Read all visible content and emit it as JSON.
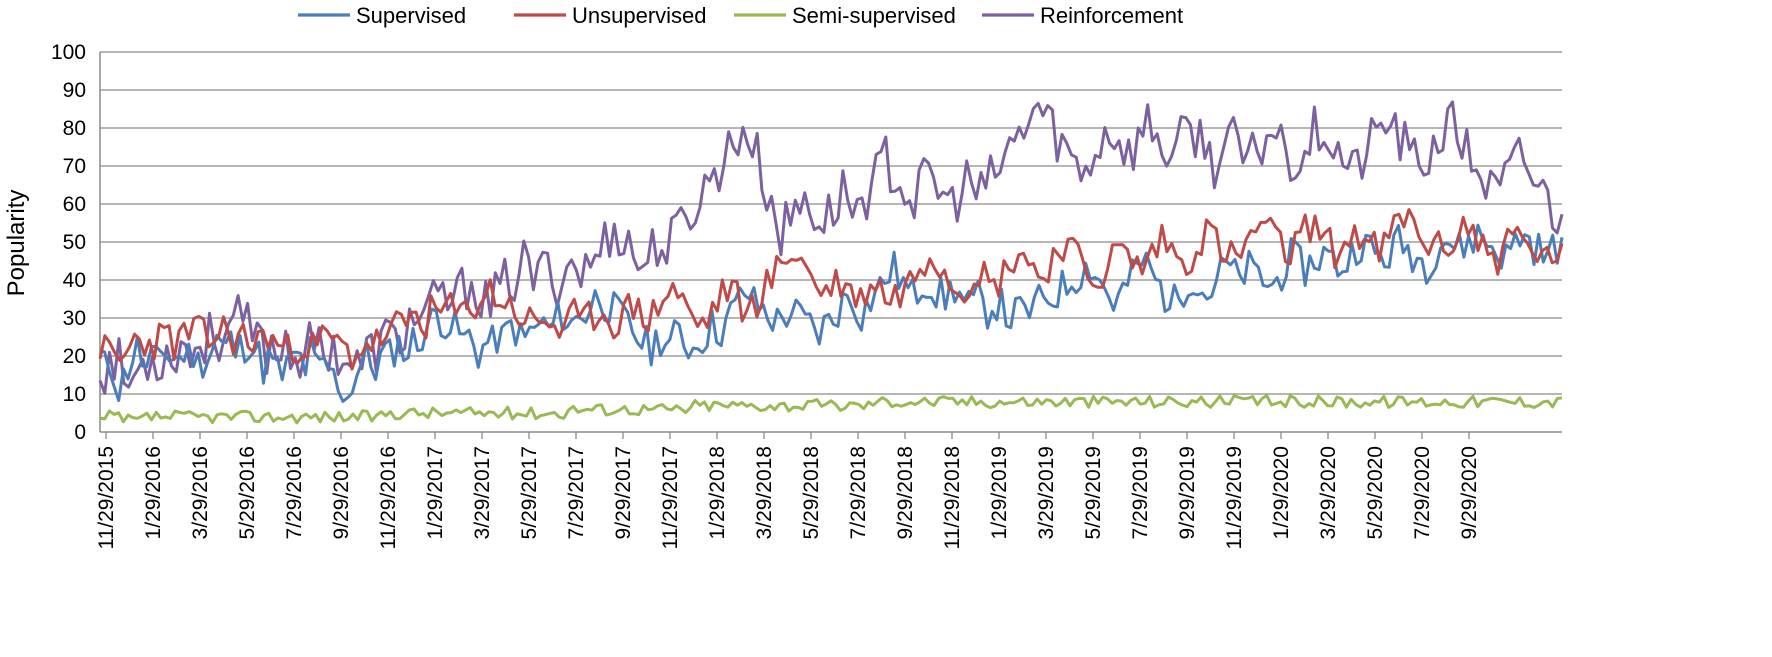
{
  "chart_data": {
    "type": "line",
    "title": "",
    "xlabel": "",
    "ylabel": "Popularity",
    "ylim": [
      0,
      100
    ],
    "yticks": [
      0,
      10,
      20,
      30,
      40,
      50,
      60,
      70,
      80,
      90,
      100
    ],
    "grid": "horizontal",
    "legend": "top",
    "x_start": "11/29/2015",
    "x_end": "12/27/2020",
    "x_step": "weekly",
    "x_tick_labels": [
      "11/29/2015",
      "1/29/2016",
      "3/29/2016",
      "5/29/2016",
      "7/29/2016",
      "9/29/2016",
      "11/29/2016",
      "1/29/2017",
      "3/29/2017",
      "5/29/2017",
      "7/29/2017",
      "9/29/2017",
      "11/29/2017",
      "1/29/2018",
      "3/29/2018",
      "5/29/2018",
      "7/29/2018",
      "9/29/2018",
      "11/29/2018",
      "1/29/2019",
      "3/29/2019",
      "5/29/2019",
      "7/29/2019",
      "9/29/2019",
      "11/29/2019",
      "1/29/2020",
      "3/29/2020",
      "5/29/2020",
      "7/29/2020",
      "9/29/2020"
    ],
    "series": [
      {
        "name": "Supervised",
        "color": "#4a7ebb",
        "values": [
          20,
          17,
          18,
          16,
          11,
          14,
          17,
          20,
          22,
          19,
          16,
          19,
          18,
          21,
          22,
          19,
          20,
          19,
          21,
          20,
          21,
          18,
          19,
          20,
          22,
          25,
          23,
          22,
          24,
          21,
          22,
          23,
          24,
          22,
          20,
          17,
          19,
          18,
          16,
          15,
          17,
          18,
          20,
          19,
          17,
          21,
          18,
          16,
          18,
          17,
          14,
          13,
          11,
          9,
          13,
          16,
          18,
          20,
          18,
          17,
          19,
          21,
          20,
          22,
          23,
          22,
          21,
          24,
          23,
          26,
          28,
          29,
          31,
          30,
          29,
          28,
          27,
          26,
          24,
          25,
          23,
          21,
          22,
          24,
          23,
          25,
          24,
          26,
          28,
          27,
          25,
          24,
          27,
          26,
          29,
          28,
          27,
          28,
          30,
          31,
          29,
          28,
          30,
          32,
          31,
          33,
          35,
          36,
          34,
          33,
          32,
          31,
          30,
          28,
          27,
          25,
          24,
          23,
          22,
          24,
          25,
          24,
          23,
          25,
          26,
          24,
          23,
          22,
          24,
          25,
          26,
          28,
          27,
          27,
          29,
          31,
          33,
          35,
          37,
          36,
          34,
          33,
          32,
          31,
          30,
          29,
          30,
          31,
          32,
          31,
          30,
          29,
          28,
          27,
          26,
          28,
          29,
          30,
          32,
          34,
          36,
          35,
          33,
          31,
          33,
          35,
          37,
          38,
          40,
          42,
          43,
          41,
          39,
          37,
          36,
          37,
          39,
          40,
          38,
          37,
          36,
          35,
          37,
          38,
          36,
          34,
          33,
          34,
          35,
          33,
          32,
          33,
          34,
          33,
          31,
          30,
          31,
          32,
          31,
          32,
          33,
          34,
          35,
          36,
          35,
          37,
          38,
          39,
          40,
          41,
          42,
          43,
          44,
          42,
          40,
          38,
          36,
          34,
          35,
          37,
          39,
          41,
          43,
          45,
          44,
          42,
          40,
          38,
          36,
          35,
          34,
          36,
          38,
          40,
          41,
          39,
          37,
          36,
          38,
          40,
          42,
          44,
          43,
          41,
          40,
          42,
          43,
          42,
          41,
          40,
          39,
          38,
          40,
          42,
          44,
          46,
          45,
          44,
          43,
          44,
          45,
          46,
          47,
          46,
          45,
          44,
          43,
          45,
          47,
          49,
          50,
          49,
          48,
          47,
          46,
          45,
          47,
          49,
          50,
          49,
          48,
          47,
          46,
          45,
          44,
          46,
          48,
          50,
          51,
          50,
          49,
          48,
          49,
          50,
          51,
          52,
          51,
          50,
          49,
          48,
          47,
          46,
          48,
          50,
          52,
          51,
          50,
          49,
          48,
          47,
          46,
          48,
          49,
          50
        ],
        "seed": 11
      },
      {
        "name": "Unsupervised",
        "color": "#be4b48",
        "values": [
          23,
          21,
          20,
          19,
          18,
          20,
          22,
          24,
          25,
          24,
          23,
          24,
          25,
          24,
          26,
          23,
          24,
          25,
          26,
          27,
          26,
          25,
          24,
          25,
          26,
          27,
          26,
          25,
          24,
          25,
          24,
          23,
          24,
          25,
          26,
          24,
          23,
          22,
          21,
          22,
          23,
          24,
          23,
          22,
          23,
          24,
          25,
          24,
          23,
          22,
          21,
          20,
          21,
          22,
          23,
          24,
          23,
          25,
          24,
          26,
          28,
          27,
          29,
          30,
          31,
          30,
          29,
          31,
          32,
          31,
          33,
          32,
          31,
          30,
          32,
          33,
          34,
          35,
          36,
          37,
          36,
          35,
          34,
          33,
          32,
          31,
          30,
          29,
          28,
          29,
          30,
          29,
          28,
          27,
          28,
          29,
          30,
          29,
          28,
          30,
          31,
          32,
          31,
          30,
          29,
          30,
          31,
          32,
          33,
          32,
          31,
          30,
          31,
          33,
          35,
          37,
          38,
          36,
          34,
          32,
          30,
          29,
          28,
          30,
          32,
          34,
          36,
          38,
          37,
          35,
          33,
          31,
          33,
          35,
          37,
          39,
          40,
          42,
          44,
          46,
          48,
          47,
          45,
          43,
          41,
          39,
          38,
          37,
          38,
          39,
          40,
          38,
          37,
          36,
          35,
          37,
          39,
          40,
          38,
          36,
          35,
          36,
          37,
          38,
          40,
          42,
          44,
          46,
          48,
          47,
          45,
          43,
          41,
          39,
          38,
          39,
          40,
          42,
          43,
          41,
          39,
          38,
          40,
          42,
          44,
          46,
          48,
          47,
          45,
          43,
          41,
          42,
          44,
          46,
          48,
          50,
          49,
          47,
          45,
          43,
          42,
          41,
          40,
          42,
          44,
          46,
          48,
          47,
          46,
          45,
          44,
          43,
          45,
          47,
          49,
          51,
          50,
          48,
          46,
          44,
          45,
          47,
          49,
          51,
          53,
          52,
          50,
          48,
          47,
          46,
          45,
          47,
          49,
          51,
          53,
          55,
          54,
          52,
          50,
          49,
          48,
          47,
          49,
          51,
          53,
          55,
          54,
          52,
          50,
          49,
          48,
          47,
          49,
          51,
          53,
          52,
          50,
          49,
          48,
          47,
          49,
          51,
          53,
          55,
          57,
          56,
          54,
          52,
          51,
          50,
          49,
          48,
          47,
          49,
          51,
          53,
          55,
          54,
          52,
          50,
          49,
          48,
          47,
          46,
          48,
          50,
          52,
          51,
          50,
          49,
          48,
          47,
          46,
          45,
          47,
          48,
          49
        ],
        "seed": 23
      },
      {
        "name": "Semi-supervised",
        "color": "#98b954",
        "values": [
          3,
          3,
          4,
          4,
          4,
          3,
          3,
          3,
          3,
          3,
          4,
          4,
          4,
          4,
          4,
          4,
          4,
          4,
          4,
          4,
          4,
          4,
          4,
          4,
          4,
          4,
          4,
          4,
          4,
          4,
          4,
          4,
          4,
          4,
          4,
          4,
          4,
          4,
          4,
          4,
          4,
          4,
          4,
          4,
          4,
          4,
          4,
          4,
          4,
          4,
          4,
          4,
          4,
          4,
          4,
          4,
          4,
          4,
          4,
          4,
          4,
          5,
          5,
          5,
          5,
          5,
          5,
          5,
          5,
          5,
          5,
          5,
          5,
          5,
          5,
          5,
          5,
          5,
          5,
          5,
          5,
          5,
          5,
          5,
          5,
          5,
          5,
          5,
          5,
          5,
          5,
          5,
          5,
          5,
          5,
          5,
          5,
          5,
          5,
          5,
          6,
          6,
          6,
          6,
          6,
          6,
          6,
          6,
          6,
          6,
          6,
          6,
          6,
          6,
          6,
          6,
          6,
          6,
          6,
          6,
          6,
          6,
          6,
          6,
          6,
          6,
          6,
          7,
          7,
          7,
          7,
          7,
          7,
          7,
          7,
          7,
          7,
          7,
          7,
          7,
          7,
          7,
          7,
          7,
          7,
          7,
          7,
          7,
          7,
          7,
          7,
          7,
          7,
          7,
          7,
          7,
          7,
          7,
          7,
          7,
          7,
          7,
          7,
          7,
          7,
          8,
          8,
          8,
          8,
          8,
          8,
          8,
          8,
          8,
          8,
          8,
          8,
          8,
          8,
          8,
          8,
          8,
          8,
          8,
          8,
          8,
          8,
          8,
          8,
          8,
          8,
          8,
          8,
          8,
          8,
          8,
          8,
          8,
          8,
          8,
          8,
          8,
          8,
          8,
          8,
          8,
          8,
          8,
          8,
          8,
          8,
          8,
          8,
          8,
          8,
          8,
          8,
          8,
          8,
          8,
          8,
          8,
          8,
          8,
          8,
          8,
          8,
          8,
          8,
          8,
          8,
          8,
          8,
          8,
          8,
          8,
          8,
          8,
          8,
          8,
          8,
          8,
          8,
          8,
          8,
          8,
          8,
          8,
          8,
          8,
          8,
          8,
          8,
          8,
          8,
          8,
          8,
          8,
          8,
          8,
          8,
          8,
          8,
          8,
          8,
          8,
          8,
          8,
          8,
          8,
          8,
          8,
          8,
          8,
          8,
          8,
          8,
          8,
          8,
          8,
          8,
          8,
          8,
          8,
          8,
          8,
          8,
          8,
          8,
          8,
          8,
          8,
          8,
          8,
          8,
          8,
          8,
          8,
          8,
          8,
          8,
          8,
          8,
          8,
          8,
          8,
          8,
          8,
          8,
          8,
          8,
          8,
          8
        ],
        "seed": 37
      },
      {
        "name": "Reinforcement",
        "color": "#7d60a0",
        "values": [
          16,
          17,
          18,
          19,
          18,
          14,
          13,
          14,
          16,
          18,
          19,
          20,
          20,
          19,
          20,
          21,
          22,
          23,
          22,
          21,
          22,
          23,
          24,
          25,
          26,
          25,
          27,
          28,
          30,
          29,
          28,
          27,
          25,
          24,
          23,
          22,
          22,
          21,
          23,
          24,
          22,
          21,
          20,
          21,
          22,
          23,
          22,
          21,
          23,
          22,
          21,
          20,
          19,
          18,
          17,
          18,
          20,
          21,
          22,
          23,
          25,
          24,
          26,
          25,
          27,
          29,
          30,
          31,
          30,
          32,
          33,
          34,
          35,
          34,
          36,
          35,
          37,
          39,
          40,
          38,
          36,
          34,
          33,
          35,
          37,
          39,
          41,
          40,
          42,
          44,
          43,
          41,
          40,
          42,
          44,
          42,
          40,
          41,
          43,
          45,
          44,
          43,
          42,
          44,
          46,
          48,
          50,
          52,
          54,
          53,
          51,
          49,
          47,
          45,
          44,
          46,
          48,
          50,
          49,
          48,
          50,
          52,
          54,
          56,
          58,
          60,
          62,
          64,
          66,
          68,
          70,
          72,
          74,
          76,
          78,
          80,
          78,
          76,
          72,
          68,
          64,
          60,
          56,
          52,
          54,
          56,
          58,
          60,
          62,
          60,
          58,
          56,
          55,
          57,
          59,
          61,
          63,
          62,
          60,
          59,
          61,
          63,
          65,
          67,
          69,
          71,
          70,
          68,
          66,
          64,
          62,
          61,
          63,
          65,
          67,
          66,
          64,
          62,
          61,
          60,
          62,
          64,
          66,
          65,
          63,
          62,
          64,
          66,
          68,
          70,
          72,
          74,
          76,
          78,
          80,
          82,
          84,
          86,
          84,
          82,
          80,
          78,
          76,
          74,
          72,
          70,
          68,
          70,
          72,
          74,
          76,
          78,
          80,
          79,
          77,
          75,
          73,
          75,
          77,
          79,
          81,
          80,
          78,
          76,
          74,
          72,
          74,
          76,
          78,
          80,
          79,
          77,
          75,
          73,
          71,
          73,
          75,
          77,
          76,
          74,
          72,
          70,
          72,
          74,
          76,
          78,
          80,
          79,
          77,
          75,
          73,
          71,
          73,
          75,
          77,
          79,
          81,
          80,
          78,
          76,
          74,
          72,
          70,
          68,
          70,
          72,
          74,
          76,
          78,
          80,
          82,
          81,
          79,
          77,
          75,
          73,
          71,
          69,
          71,
          73,
          75,
          77,
          79,
          81,
          80,
          78,
          76,
          74,
          72,
          70,
          68,
          66,
          64,
          62,
          64,
          66,
          68,
          70,
          72,
          71,
          69,
          67,
          65,
          63,
          61,
          59,
          57,
          60
        ],
        "seed": 53
      }
    ]
  }
}
